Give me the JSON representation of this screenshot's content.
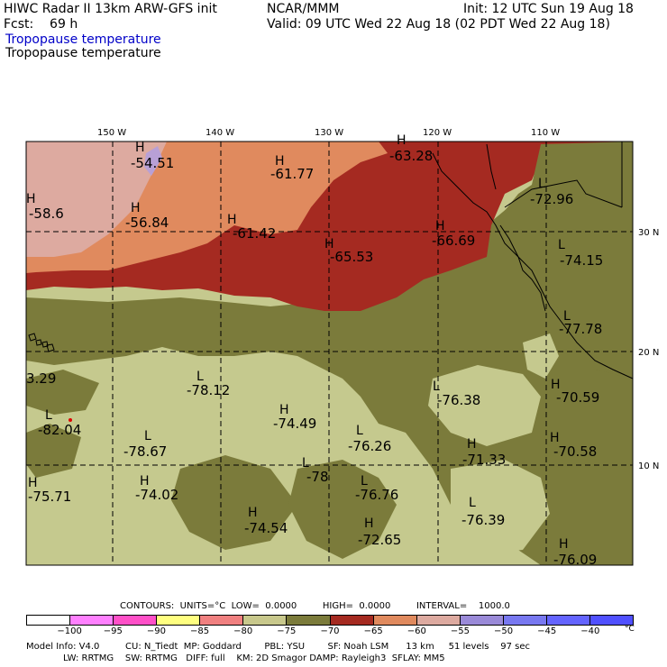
{
  "header": {
    "line1_left": "HIWC Radar II 13km ARW-GFS init",
    "line1_mid": "NCAR/MMM",
    "line1_right": "Init: 12 UTC Sun 19 Aug 18",
    "line2_left": "Fcst:    69 h",
    "line2_right": "Valid: 09 UTC Wed 22 Aug 18 (02 PDT Wed 22 Aug 18)",
    "line3_blue": "Tropopause temperature",
    "line4": "Tropopause temperature"
  },
  "map": {
    "longitude_labels": [
      "150 W",
      "140 W",
      "130 W",
      "120 W",
      "110 W"
    ],
    "latitude_labels": [
      "30 N",
      "20 N",
      "10 N"
    ],
    "extrema": [
      {
        "type": "H",
        "value": "-54.51"
      },
      {
        "type": "H",
        "value": "-61.77"
      },
      {
        "type": "H",
        "value": "-63.28"
      },
      {
        "type": "H",
        "value": "-58.6"
      },
      {
        "type": "H",
        "value": "-56.84"
      },
      {
        "type": "H",
        "value": "-61.42"
      },
      {
        "type": "H",
        "value": "-65.53"
      },
      {
        "type": "H",
        "value": "-66.69"
      },
      {
        "type": "L",
        "value": "-72.96"
      },
      {
        "type": "L",
        "value": "-74.15"
      },
      {
        "type": "L",
        "value": "-77.78"
      },
      {
        "type": "",
        "value": "3.29"
      },
      {
        "type": "L",
        "value": "-78.12"
      },
      {
        "type": "L",
        "value": "-76.38"
      },
      {
        "type": "H",
        "value": "-70.59"
      },
      {
        "type": "L",
        "value": "-82.04"
      },
      {
        "type": "H",
        "value": "-74.49"
      },
      {
        "type": "L",
        "value": "-76.26"
      },
      {
        "type": "L",
        "value": "-78.67"
      },
      {
        "type": "H",
        "value": "-71.33"
      },
      {
        "type": "H",
        "value": "-70.58"
      },
      {
        "type": "L",
        "value": "-78"
      },
      {
        "type": "H",
        "value": "-75.71"
      },
      {
        "type": "H",
        "value": "-74.02"
      },
      {
        "type": "L",
        "value": "-76.76"
      },
      {
        "type": "H",
        "value": "-74.54"
      },
      {
        "type": "H",
        "value": "-72.65"
      },
      {
        "type": "L",
        "value": "-76.39"
      },
      {
        "type": "H",
        "value": "-76.09"
      }
    ],
    "colors": {
      "region_gt_m55": "#ddaaa0",
      "region_m55_m60": "#e08a5e",
      "region_m60_m65": "#a52a21",
      "region_m65_m70": "#a52a21",
      "region_m70_m75": "#7b7b3b",
      "region_m75_m80": "#c5c98e",
      "region_pale": "#d6d8a5",
      "region_lt_m80": "#b8a0d6",
      "grid_line": "#000000",
      "coast": "#000000"
    }
  },
  "legend": {
    "contours_line": "CONTOURS:  UNITS=°C  LOW=  0.0000         HIGH=  0.0000         INTERVAL=    1000.0",
    "tick_labels": [
      "−100",
      "−95",
      "−90",
      "−85",
      "−80",
      "−75",
      "−70",
      "−65",
      "−60",
      "−55",
      "−50",
      "−45",
      "−40"
    ],
    "unit": "°C",
    "colorbar_colors": [
      "#ffffff",
      "#ff80ff",
      "#ff50c8",
      "#ffff80",
      "#f08080",
      "#c8c88c",
      "#7b7b3b",
      "#a52a21",
      "#e08a5e",
      "#ddaaa0",
      "#9a8ad8",
      "#7878f0",
      "#6464ff",
      "#5050ff"
    ],
    "model_info_line1": "Model Info: V4.0         CU: N_Tiedt  MP: Goddard        PBL: YSU        SF: Noah LSM      13 km     51 levels    97 sec",
    "model_info_line2": "LW: RRTMG    SW: RRTMG   DIFF: full    KM: 2D Smagor DAMP: Rayleigh3  SFLAY: MM5"
  }
}
